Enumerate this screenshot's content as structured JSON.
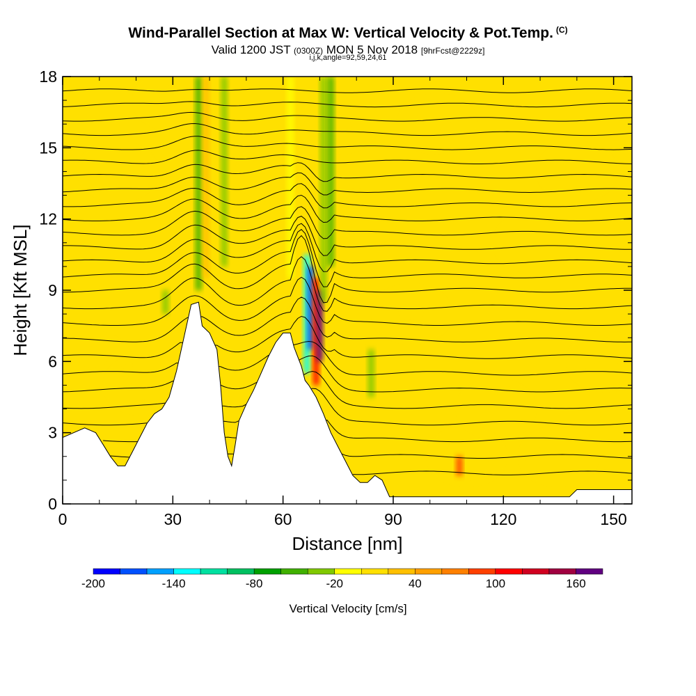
{
  "header": {
    "title": "Wind-Parallel Section at Max W: Vertical Velocity & Pot.Temp.",
    "title_mark": "(C)",
    "valid_prefix": "Valid 1200 JST",
    "valid_zulu": "(0300Z)",
    "valid_date": "MON 5 Nov 2018",
    "fcst": "[9hrFcst@2229z]",
    "grid_info": "i,j,k,angle=92,59,24,61"
  },
  "chart_data": {
    "type": "heatmap",
    "xlabel": "Distance [nm]",
    "ylabel": "Height [Kft MSL]",
    "xlim": [
      0,
      155
    ],
    "ylim": [
      0,
      18
    ],
    "xticks": [
      "0",
      "30",
      "60",
      "90",
      "120",
      "150"
    ],
    "xtick_values": [
      0,
      30,
      60,
      90,
      120,
      150
    ],
    "yticks": [
      "0",
      "3",
      "6",
      "9",
      "12",
      "15",
      "18"
    ],
    "ytick_values": [
      0,
      3,
      6,
      9,
      12,
      15,
      18
    ],
    "terrain_kft": [
      [
        0,
        2.8
      ],
      [
        3,
        3.0
      ],
      [
        6,
        3.2
      ],
      [
        9,
        3.0
      ],
      [
        11,
        2.5
      ],
      [
        13,
        2.0
      ],
      [
        15,
        1.6
      ],
      [
        17,
        1.6
      ],
      [
        19,
        2.2
      ],
      [
        21,
        2.8
      ],
      [
        23,
        3.4
      ],
      [
        25,
        3.8
      ],
      [
        27,
        4.0
      ],
      [
        29,
        4.5
      ],
      [
        31,
        5.6
      ],
      [
        33,
        7.0
      ],
      [
        35,
        8.4
      ],
      [
        37,
        8.5
      ],
      [
        38,
        7.5
      ],
      [
        40,
        7.2
      ],
      [
        42,
        6.5
      ],
      [
        43,
        5.0
      ],
      [
        44,
        3.0
      ],
      [
        45,
        2.0
      ],
      [
        46,
        1.6
      ],
      [
        47,
        2.5
      ],
      [
        48,
        3.5
      ],
      [
        50,
        4.2
      ],
      [
        52,
        4.8
      ],
      [
        54,
        5.5
      ],
      [
        56,
        6.2
      ],
      [
        58,
        6.8
      ],
      [
        60,
        7.2
      ],
      [
        62,
        7.2
      ],
      [
        63,
        6.6
      ],
      [
        65,
        5.8
      ],
      [
        66,
        5.2
      ],
      [
        67,
        5.0
      ],
      [
        69,
        4.5
      ],
      [
        71,
        3.8
      ],
      [
        73,
        3.0
      ],
      [
        75,
        2.4
      ],
      [
        77,
        1.8
      ],
      [
        79,
        1.2
      ],
      [
        81,
        0.9
      ],
      [
        83,
        0.9
      ],
      [
        85,
        1.2
      ],
      [
        87,
        1.0
      ],
      [
        89,
        0.3
      ],
      [
        92,
        0.3
      ],
      [
        100,
        0.3
      ],
      [
        110,
        0.3
      ],
      [
        120,
        0.3
      ],
      [
        130,
        0.3
      ],
      [
        138,
        0.3
      ],
      [
        140,
        0.6
      ],
      [
        145,
        0.6
      ],
      [
        150,
        0.6
      ],
      [
        155,
        0.6
      ]
    ],
    "velocity_features": [
      {
        "x": 37,
        "y0": 9.0,
        "y1": 18.0,
        "w": -60
      },
      {
        "x": 39,
        "y0": 9.5,
        "y1": 18.0,
        "w": 20
      },
      {
        "x": 44,
        "y0": 10.0,
        "y1": 18.0,
        "w": -40
      },
      {
        "x": 66.5,
        "y0": 5.5,
        "y1": 10.5,
        "w": -140
      },
      {
        "x": 67.5,
        "y0": 6.5,
        "y1": 10.0,
        "w": -180
      },
      {
        "x": 69,
        "y0": 5.0,
        "y1": 9.5,
        "w": 110
      },
      {
        "x": 70,
        "y0": 6.0,
        "y1": 9.0,
        "w": 170
      },
      {
        "x": 71,
        "y0": 8.5,
        "y1": 18.0,
        "w": -40
      },
      {
        "x": 73,
        "y0": 10.0,
        "y1": 18.0,
        "w": -60
      },
      {
        "x": 84,
        "y0": 4.5,
        "y1": 6.5,
        "w": -40
      },
      {
        "x": 28,
        "y0": 8.0,
        "y1": 9.0,
        "w": -40
      },
      {
        "x": 62,
        "y0": 9.5,
        "y1": 18.0,
        "w": -20
      },
      {
        "x": 108,
        "y0": 1.2,
        "y1": 2.0,
        "w": 90
      }
    ],
    "theta_isentrope_heights_kft": [
      1.3,
      2.0,
      2.7,
      3.4,
      4.1,
      4.8,
      5.5,
      6.2,
      6.9,
      7.6,
      8.3,
      9.0,
      9.6,
      10.2,
      10.8,
      11.4,
      12.0,
      12.6,
      13.2,
      13.8,
      14.4,
      15.0,
      15.6,
      16.2,
      16.8,
      17.4
    ]
  },
  "colorbar": {
    "title": "Vertical Velocity [cm/s]",
    "min": -200,
    "max": 180,
    "step": 20,
    "labels": [
      "-200",
      "-140",
      "-80",
      "-20",
      "40",
      "100",
      "160"
    ],
    "label_values": [
      -200,
      -140,
      -80,
      -20,
      40,
      100,
      160
    ],
    "colors": [
      "#0000ff",
      "#0050ff",
      "#00a0ff",
      "#00ffff",
      "#00e0a0",
      "#00c060",
      "#00a000",
      "#40b000",
      "#80c800",
      "#ffff00",
      "#ffe000",
      "#ffc000",
      "#ffa000",
      "#ff8000",
      "#ff4000",
      "#ff0000",
      "#d00020",
      "#a00040",
      "#600080"
    ]
  }
}
